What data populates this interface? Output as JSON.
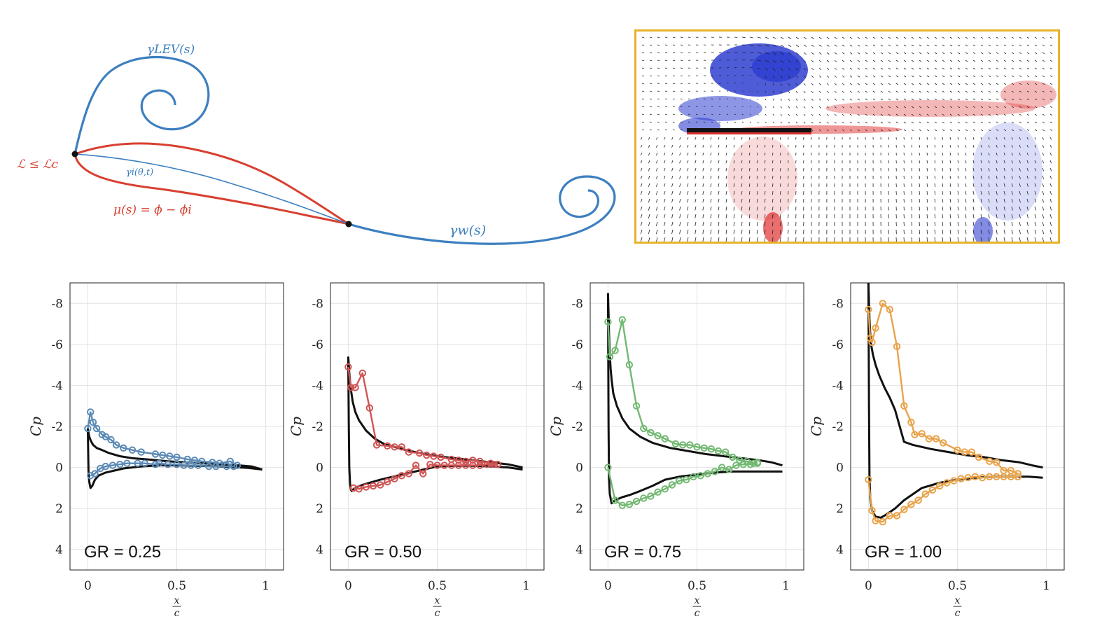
{
  "schematic": {
    "labels": {
      "lev": "γLEV(s)",
      "crit": "ℒ ≤ ℒc",
      "gamma_i": "γi(θ,t)",
      "mu": "μ(s) = ϕ − ϕi",
      "wake": "γw(s)"
    },
    "colors": {
      "blue": "#3c7fc0",
      "red": "#d84030"
    }
  },
  "piv": {
    "border_color": "#e8b22a",
    "colormap": [
      "#3040d0",
      "#ffffff",
      "#e03030"
    ]
  },
  "panel_axes": {
    "ylabel": "Cp",
    "xlabel_num": "x",
    "xlabel_den": "c",
    "xticks": [
      "0",
      "0.5",
      "1"
    ],
    "yticks": [
      "-8",
      "-6",
      "-4",
      "-2",
      "0",
      "2",
      "4"
    ]
  },
  "chart_data": [
    {
      "type": "line",
      "label": "GR = 0.25",
      "color": "#5b8ab5",
      "xlim": [
        -0.1,
        1.1
      ],
      "ylim": [
        5,
        -9
      ],
      "y_axis_inverted": true,
      "grid": true,
      "series": [
        {
          "style": "line",
          "x": [
            0.0,
            0.004,
            0.008,
            0.012,
            0.02,
            0.03,
            0.05,
            0.08,
            0.12,
            0.18,
            0.25,
            0.35,
            0.45,
            0.55,
            0.65,
            0.75,
            0.85,
            0.92,
            0.98
          ],
          "y": [
            -1.9,
            -1.7,
            -1.5,
            -1.4,
            -1.25,
            -1.1,
            -0.95,
            -0.85,
            -0.7,
            -0.55,
            -0.45,
            -0.38,
            -0.3,
            -0.25,
            -0.2,
            -0.15,
            -0.1,
            -0.05,
            0.1
          ]
        },
        {
          "style": "line",
          "x": [
            0.0,
            0.004,
            0.008,
            0.015,
            0.025,
            0.04,
            0.06,
            0.1,
            0.15,
            0.2,
            0.3,
            0.4,
            0.5,
            0.6,
            0.7,
            0.8,
            0.9,
            0.98
          ],
          "y": [
            -1.9,
            0.2,
            0.7,
            1.0,
            0.9,
            0.6,
            0.4,
            0.25,
            0.15,
            0.05,
            -0.05,
            -0.1,
            -0.1,
            -0.08,
            -0.06,
            -0.03,
            0.02,
            0.1
          ]
        },
        {
          "style": "markers",
          "x": [
            0.0,
            0.015,
            0.03,
            0.05,
            0.08,
            0.1,
            0.13,
            0.16,
            0.2,
            0.25,
            0.3,
            0.38,
            0.42,
            0.46,
            0.5,
            0.56,
            0.6,
            0.64,
            0.7,
            0.74,
            0.8,
            0.84
          ],
          "y": [
            -1.9,
            -2.7,
            -2.2,
            -1.9,
            -1.6,
            -1.5,
            -1.35,
            -1.1,
            -0.95,
            -0.85,
            -0.75,
            -0.65,
            -0.6,
            -0.55,
            -0.5,
            -0.4,
            -0.35,
            -0.3,
            -0.25,
            -0.2,
            -0.3,
            -0.1
          ]
        },
        {
          "style": "markers",
          "x": [
            0.015,
            0.04,
            0.07,
            0.1,
            0.14,
            0.18,
            0.22,
            0.28,
            0.32,
            0.38,
            0.4,
            0.45,
            0.5,
            0.54,
            0.58,
            0.62,
            0.68,
            0.72,
            0.78,
            0.82
          ],
          "y": [
            0.4,
            0.3,
            0.05,
            -0.05,
            -0.1,
            -0.15,
            -0.2,
            -0.2,
            -0.2,
            -0.15,
            -0.2,
            -0.15,
            -0.15,
            -0.1,
            -0.1,
            -0.1,
            -0.05,
            -0.05,
            -0.05,
            -0.05
          ]
        }
      ]
    },
    {
      "type": "line",
      "label": "GR = 0.50",
      "color": "#d05454",
      "xlim": [
        -0.1,
        1.1
      ],
      "ylim": [
        5,
        -9
      ],
      "y_axis_inverted": true,
      "grid": true,
      "series": [
        {
          "style": "line",
          "x": [
            0.0,
            0.003,
            0.006,
            0.01,
            0.015,
            0.025,
            0.04,
            0.06,
            0.1,
            0.15,
            0.2,
            0.3,
            0.4,
            0.5,
            0.6,
            0.7,
            0.8,
            0.9,
            0.98
          ],
          "y": [
            -5.4,
            -5.0,
            -4.6,
            -4.2,
            -3.8,
            -3.2,
            -2.7,
            -2.3,
            -1.8,
            -1.4,
            -1.15,
            -0.9,
            -0.7,
            -0.55,
            -0.45,
            -0.35,
            -0.25,
            -0.15,
            0.0
          ]
        },
        {
          "style": "line",
          "x": [
            0.0,
            0.003,
            0.006,
            0.01,
            0.015,
            0.02,
            0.03,
            0.05,
            0.08,
            0.12,
            0.18,
            0.25,
            0.35,
            0.45,
            0.5,
            0.6,
            0.7,
            0.8,
            0.9,
            0.98
          ],
          "y": [
            -5.4,
            -2.0,
            0.0,
            0.8,
            1.1,
            1.15,
            1.05,
            0.95,
            0.85,
            0.75,
            0.6,
            0.45,
            0.25,
            0.05,
            -0.05,
            -0.08,
            -0.08,
            -0.05,
            0.0,
            0.1
          ]
        },
        {
          "style": "markers",
          "x": [
            0.0,
            0.015,
            0.04,
            0.08,
            0.12,
            0.16,
            0.22,
            0.26,
            0.3,
            0.34,
            0.4,
            0.44,
            0.48,
            0.52,
            0.58,
            0.62,
            0.66,
            0.7,
            0.74,
            0.8,
            0.84
          ],
          "y": [
            -4.9,
            -3.9,
            -3.9,
            -4.6,
            -2.9,
            -1.1,
            -1.05,
            -1.0,
            -1.0,
            -0.75,
            -0.7,
            -0.6,
            -0.55,
            -0.5,
            -0.4,
            -0.35,
            -0.3,
            -0.35,
            -0.3,
            -0.2,
            -0.15
          ]
        },
        {
          "style": "markers",
          "x": [
            0.03,
            0.06,
            0.1,
            0.14,
            0.18,
            0.22,
            0.26,
            0.3,
            0.34,
            0.38,
            0.42,
            0.46,
            0.5,
            0.54,
            0.58,
            0.62,
            0.66,
            0.7,
            0.74,
            0.78,
            0.82
          ],
          "y": [
            1.0,
            1.05,
            0.95,
            0.9,
            0.85,
            0.7,
            0.55,
            0.4,
            0.3,
            -0.1,
            0.3,
            -0.15,
            -0.1,
            -0.1,
            -0.1,
            -0.1,
            -0.1,
            -0.1,
            -0.1,
            -0.15,
            -0.15
          ]
        }
      ]
    },
    {
      "type": "line",
      "label": "GR = 0.75",
      "color": "#72b872",
      "xlim": [
        -0.1,
        1.1
      ],
      "ylim": [
        5,
        -9
      ],
      "y_axis_inverted": true,
      "grid": true,
      "series": [
        {
          "style": "line",
          "x": [
            0.0,
            0.003,
            0.006,
            0.01,
            0.015,
            0.02,
            0.03,
            0.05,
            0.08,
            0.12,
            0.18,
            0.25,
            0.35,
            0.45,
            0.55,
            0.65,
            0.75,
            0.85,
            0.92,
            0.98
          ],
          "y": [
            -8.5,
            -7.5,
            -6.5,
            -5.5,
            -4.8,
            -4.3,
            -3.6,
            -3.0,
            -2.4,
            -1.9,
            -1.5,
            -1.2,
            -0.95,
            -0.8,
            -0.65,
            -0.55,
            -0.45,
            -0.35,
            -0.25,
            -0.1
          ]
        },
        {
          "style": "line",
          "x": [
            0.0,
            0.003,
            0.006,
            0.01,
            0.02,
            0.04,
            0.08,
            0.12,
            0.18,
            0.25,
            0.32,
            0.4,
            0.5,
            0.6,
            0.7,
            0.8,
            0.9,
            0.98
          ],
          "y": [
            -8.5,
            -2.0,
            0.5,
            1.3,
            1.75,
            1.6,
            1.45,
            1.35,
            1.15,
            0.9,
            0.6,
            0.45,
            0.35,
            0.25,
            0.2,
            0.2,
            0.2,
            0.2
          ]
        },
        {
          "style": "markers",
          "x": [
            0.0,
            0.01,
            0.04,
            0.08,
            0.12,
            0.16,
            0.2,
            0.24,
            0.28,
            0.32,
            0.38,
            0.42,
            0.46,
            0.5,
            0.54,
            0.58,
            0.62,
            0.66,
            0.7,
            0.74,
            0.78,
            0.82,
            0.84
          ],
          "y": [
            -7.1,
            -5.4,
            -5.7,
            -7.2,
            -5.0,
            -3.0,
            -1.9,
            -1.7,
            -1.55,
            -1.4,
            -1.15,
            -1.1,
            -1.1,
            -1.0,
            -0.95,
            -0.9,
            -0.8,
            -0.75,
            -0.5,
            -0.35,
            -0.3,
            -0.2,
            -0.25
          ]
        },
        {
          "style": "markers",
          "x": [
            0.0,
            0.04,
            0.08,
            0.12,
            0.16,
            0.2,
            0.24,
            0.28,
            0.32,
            0.36,
            0.4,
            0.44,
            0.48,
            0.52,
            0.56,
            0.6,
            0.64,
            0.68,
            0.72,
            0.76,
            0.8,
            0.84
          ],
          "y": [
            0.0,
            1.6,
            1.85,
            1.8,
            1.65,
            1.5,
            1.4,
            1.2,
            1.05,
            0.85,
            0.65,
            0.6,
            0.45,
            0.4,
            0.3,
            0.2,
            0.0,
            0.1,
            -0.1,
            -0.15,
            -0.15,
            -0.2
          ]
        }
      ]
    },
    {
      "type": "line",
      "label": "GR = 1.00",
      "color": "#e8a34a",
      "xlim": [
        -0.1,
        1.1
      ],
      "ylim": [
        5,
        -9
      ],
      "y_axis_inverted": true,
      "grid": true,
      "series": [
        {
          "style": "line",
          "x": [
            0.0,
            0.003,
            0.006,
            0.01,
            0.015,
            0.025,
            0.04,
            0.06,
            0.09,
            0.12,
            0.15,
            0.2,
            0.25,
            0.35,
            0.45,
            0.55,
            0.65,
            0.75,
            0.85,
            0.92,
            0.98
          ],
          "y": [
            -9.0,
            -8.0,
            -7.2,
            -6.5,
            -6.0,
            -5.5,
            -5.0,
            -4.5,
            -3.9,
            -3.4,
            -2.8,
            -1.25,
            -1.1,
            -0.9,
            -0.75,
            -0.6,
            -0.5,
            -0.35,
            -0.25,
            -0.1,
            0.0
          ]
        },
        {
          "style": "line",
          "x": [
            0.0,
            0.003,
            0.006,
            0.01,
            0.02,
            0.04,
            0.07,
            0.1,
            0.15,
            0.2,
            0.25,
            0.3,
            0.4,
            0.5,
            0.6,
            0.7,
            0.8,
            0.9,
            0.98
          ],
          "y": [
            -9.0,
            -3.0,
            0.5,
            1.5,
            2.1,
            2.4,
            2.45,
            2.3,
            2.0,
            1.6,
            1.3,
            1.0,
            0.75,
            0.6,
            0.5,
            0.45,
            0.45,
            0.45,
            0.5
          ]
        },
        {
          "style": "markers",
          "x": [
            0.0,
            0.01,
            0.02,
            0.04,
            0.08,
            0.12,
            0.16,
            0.2,
            0.24,
            0.26,
            0.3,
            0.34,
            0.38,
            0.42,
            0.5,
            0.54,
            0.58,
            0.62,
            0.68,
            0.72,
            0.76,
            0.8,
            0.84
          ],
          "y": [
            -7.7,
            -6.3,
            -6.1,
            -6.8,
            -8.0,
            -7.7,
            -5.9,
            -3.0,
            -2.2,
            -1.6,
            -1.65,
            -1.4,
            -1.4,
            -1.2,
            -0.85,
            -0.75,
            -0.75,
            -0.5,
            -0.3,
            -0.25,
            0.15,
            0.15,
            0.3
          ]
        },
        {
          "style": "markers",
          "x": [
            0.0,
            0.02,
            0.04,
            0.08,
            0.12,
            0.16,
            0.2,
            0.24,
            0.28,
            0.32,
            0.36,
            0.4,
            0.44,
            0.48,
            0.52,
            0.56,
            0.6,
            0.64,
            0.68,
            0.72,
            0.76,
            0.8,
            0.84
          ],
          "y": [
            0.6,
            2.1,
            2.6,
            2.65,
            2.35,
            2.35,
            2.05,
            1.8,
            1.6,
            1.3,
            1.1,
            0.9,
            0.75,
            0.65,
            0.55,
            0.5,
            0.45,
            0.5,
            0.45,
            0.45,
            0.45,
            0.45,
            0.45
          ]
        }
      ]
    }
  ]
}
